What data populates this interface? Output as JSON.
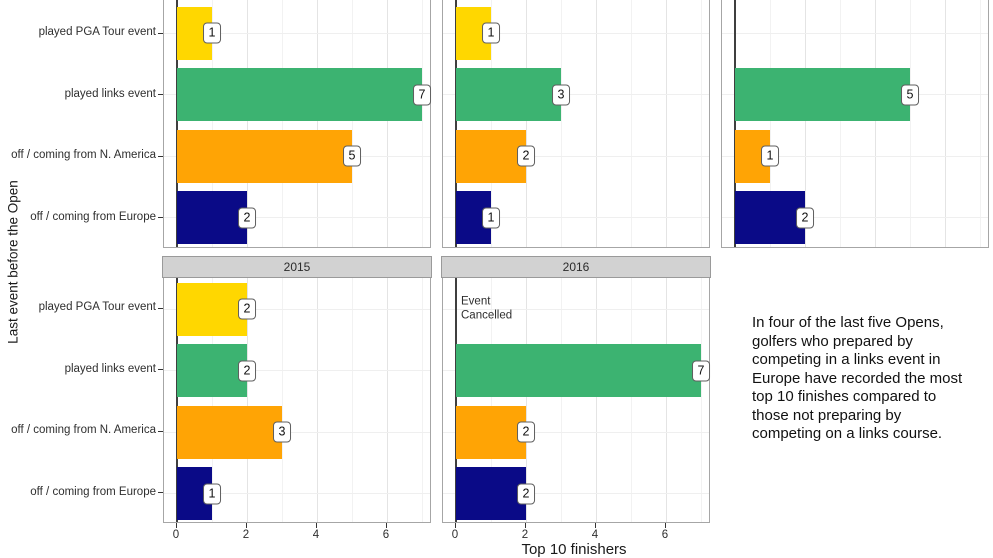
{
  "chart_data": {
    "type": "bar",
    "orientation": "horizontal",
    "title": "",
    "xlabel": "Top 10 finishers",
    "ylabel": "Last event before the Open",
    "categories": [
      "played PGA Tour event",
      "played links event",
      "off / coming from N. America",
      "off / coming from Europe"
    ],
    "category_colors": [
      "#FFD700",
      "#3CB371",
      "#FFA405",
      "#0A0A87"
    ],
    "x_ticks": [
      0,
      2,
      4,
      6
    ],
    "xlim": [
      0,
      7.3
    ],
    "grid": "faint vertical lines at each integer, faint horizontal lines at category centers",
    "legend": "none",
    "facets": [
      {
        "label": "",
        "strip_visible": false,
        "row": 0,
        "col": 0,
        "show_x_axis": false,
        "values": [
          1,
          7,
          5,
          2
        ]
      },
      {
        "label": "",
        "strip_visible": false,
        "row": 0,
        "col": 1,
        "show_x_axis": false,
        "values": [
          1,
          3,
          2,
          1
        ]
      },
      {
        "label": "",
        "strip_visible": false,
        "row": 0,
        "col": 2,
        "show_x_axis": false,
        "values": [
          0,
          5,
          1,
          2
        ]
      },
      {
        "label": "2015",
        "strip_visible": true,
        "row": 1,
        "col": 0,
        "show_x_axis": true,
        "values": [
          2,
          2,
          3,
          1
        ]
      },
      {
        "label": "2016",
        "strip_visible": true,
        "row": 1,
        "col": 1,
        "show_x_axis": true,
        "values": [
          null,
          7,
          2,
          2
        ],
        "note": "Event\nCancelled",
        "note_row": 0
      }
    ],
    "annotation": "In four of the last five Opens, golfers who prepared by competing in a links event in Europe have recorded the most top 10 finishes compared to those not preparing by competing on a links course."
  }
}
